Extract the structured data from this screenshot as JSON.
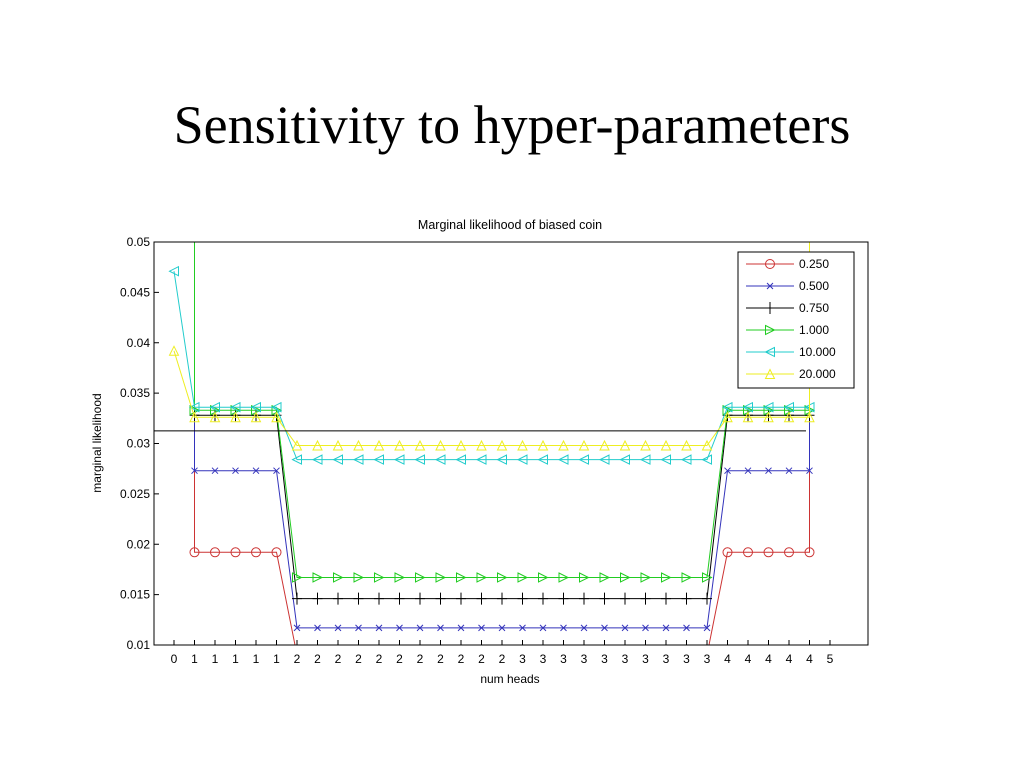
{
  "slide": {
    "title": "Sensitivity to hyper-parameters"
  },
  "chart_data": {
    "type": "line",
    "title": "Marginal likelihood of biased coin",
    "xlabel": "num heads",
    "ylabel": "marginal likelihood",
    "ylim": [
      0.01,
      0.05
    ],
    "yticks": [
      "0.01",
      "0.015",
      "0.02",
      "0.025",
      "0.03",
      "0.035",
      "0.04",
      "0.045",
      "0.05"
    ],
    "x": [
      0,
      1,
      1,
      1,
      1,
      1,
      2,
      2,
      2,
      2,
      2,
      2,
      2,
      2,
      2,
      2,
      2,
      3,
      3,
      3,
      3,
      3,
      3,
      3,
      3,
      3,
      3,
      4,
      4,
      4,
      4,
      4,
      5
    ],
    "grid": false,
    "legend_position": "top-right",
    "reference_line": 0.03125,
    "series": [
      {
        "name": "0.250",
        "color": "#cc3333",
        "marker": "circle",
        "values": [
          null,
          0.0192,
          0.0192,
          0.0192,
          0.0192,
          0.0192,
          null,
          null,
          null,
          null,
          null,
          null,
          null,
          null,
          null,
          null,
          null,
          null,
          null,
          null,
          null,
          null,
          null,
          null,
          null,
          null,
          null,
          0.0192,
          0.0192,
          0.0192,
          0.0192,
          0.0192,
          null
        ]
      },
      {
        "name": "0.500",
        "color": "#3333bb",
        "marker": "x",
        "values": [
          null,
          0.0273,
          0.0273,
          0.0273,
          0.0273,
          0.0273,
          0.0117,
          0.0117,
          0.0117,
          0.0117,
          0.0117,
          0.0117,
          0.0117,
          0.0117,
          0.0117,
          0.0117,
          0.0117,
          0.0117,
          0.0117,
          0.0117,
          0.0117,
          0.0117,
          0.0117,
          0.0117,
          0.0117,
          0.0117,
          0.0117,
          0.0273,
          0.0273,
          0.0273,
          0.0273,
          0.0273,
          null
        ]
      },
      {
        "name": "0.750",
        "color": "#000000",
        "marker": "plus",
        "values": [
          null,
          0.0328,
          0.0328,
          0.0328,
          0.0328,
          0.0328,
          0.0146,
          0.0146,
          0.0146,
          0.0146,
          0.0146,
          0.0146,
          0.0146,
          0.0146,
          0.0146,
          0.0146,
          0.0146,
          0.0146,
          0.0146,
          0.0146,
          0.0146,
          0.0146,
          0.0146,
          0.0146,
          0.0146,
          0.0146,
          0.0146,
          0.0328,
          0.0328,
          0.0328,
          0.0328,
          0.0328,
          null
        ]
      },
      {
        "name": "1.000",
        "color": "#22cc22",
        "marker": "triangle-right",
        "values": [
          null,
          0.0333,
          0.0333,
          0.0333,
          0.0333,
          0.0333,
          0.0167,
          0.0167,
          0.0167,
          0.0167,
          0.0167,
          0.0167,
          0.0167,
          0.0167,
          0.0167,
          0.0167,
          0.0167,
          0.0167,
          0.0167,
          0.0167,
          0.0167,
          0.0167,
          0.0167,
          0.0167,
          0.0167,
          0.0167,
          0.0167,
          0.0333,
          0.0333,
          0.0333,
          0.0333,
          0.0333,
          null
        ]
      },
      {
        "name": "10.000",
        "color": "#22cccc",
        "marker": "triangle-left",
        "values": [
          0.0471,
          0.0336,
          0.0336,
          0.0336,
          0.0336,
          0.0336,
          0.0284,
          0.0284,
          0.0284,
          0.0284,
          0.0284,
          0.0284,
          0.0284,
          0.0284,
          0.0284,
          0.0284,
          0.0284,
          0.0284,
          0.0284,
          0.0284,
          0.0284,
          0.0284,
          0.0284,
          0.0284,
          0.0284,
          0.0284,
          0.0284,
          0.0336,
          0.0336,
          0.0336,
          0.0336,
          0.0336,
          null
        ]
      },
      {
        "name": "20.000",
        "color": "#eeee22",
        "marker": "triangle-up",
        "values": [
          0.0392,
          0.0326,
          0.0326,
          0.0326,
          0.0326,
          0.0326,
          0.0298,
          0.0298,
          0.0298,
          0.0298,
          0.0298,
          0.0298,
          0.0298,
          0.0298,
          0.0298,
          0.0298,
          0.0298,
          0.0298,
          0.0298,
          0.0298,
          0.0298,
          0.0298,
          0.0298,
          0.0298,
          0.0298,
          0.0298,
          0.0298,
          0.0326,
          0.0326,
          0.0326,
          0.0326,
          0.0326,
          null
        ]
      }
    ]
  }
}
